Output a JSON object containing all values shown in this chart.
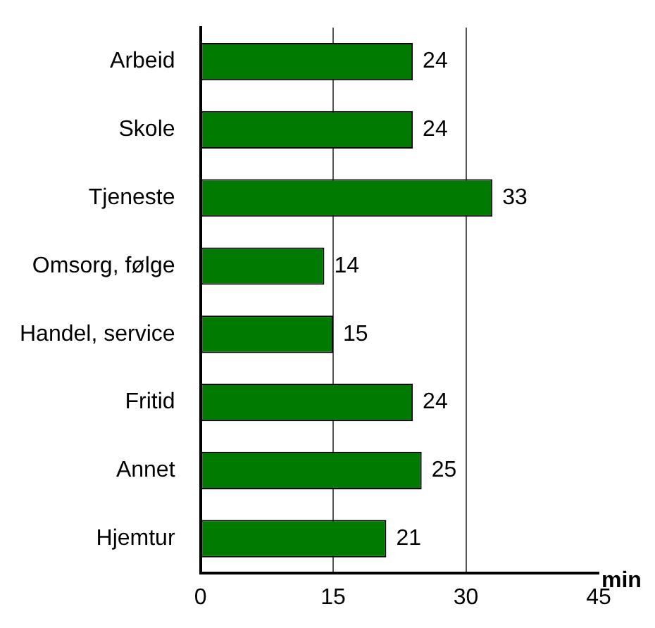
{
  "chart_data": {
    "type": "bar",
    "orientation": "horizontal",
    "xlabel": "min",
    "categories": [
      "Arbeid",
      "Skole",
      "Tjeneste",
      "Omsorg, følge",
      "Handel, service",
      "Fritid",
      "Annet",
      "Hjemtur"
    ],
    "values": [
      24,
      24,
      33,
      14,
      15,
      24,
      25,
      21
    ],
    "color": "#007a00",
    "xlim": [
      0,
      45
    ],
    "xticks": [
      0,
      15,
      30,
      45
    ],
    "grid": "x",
    "data_labels": true,
    "legend": false
  }
}
